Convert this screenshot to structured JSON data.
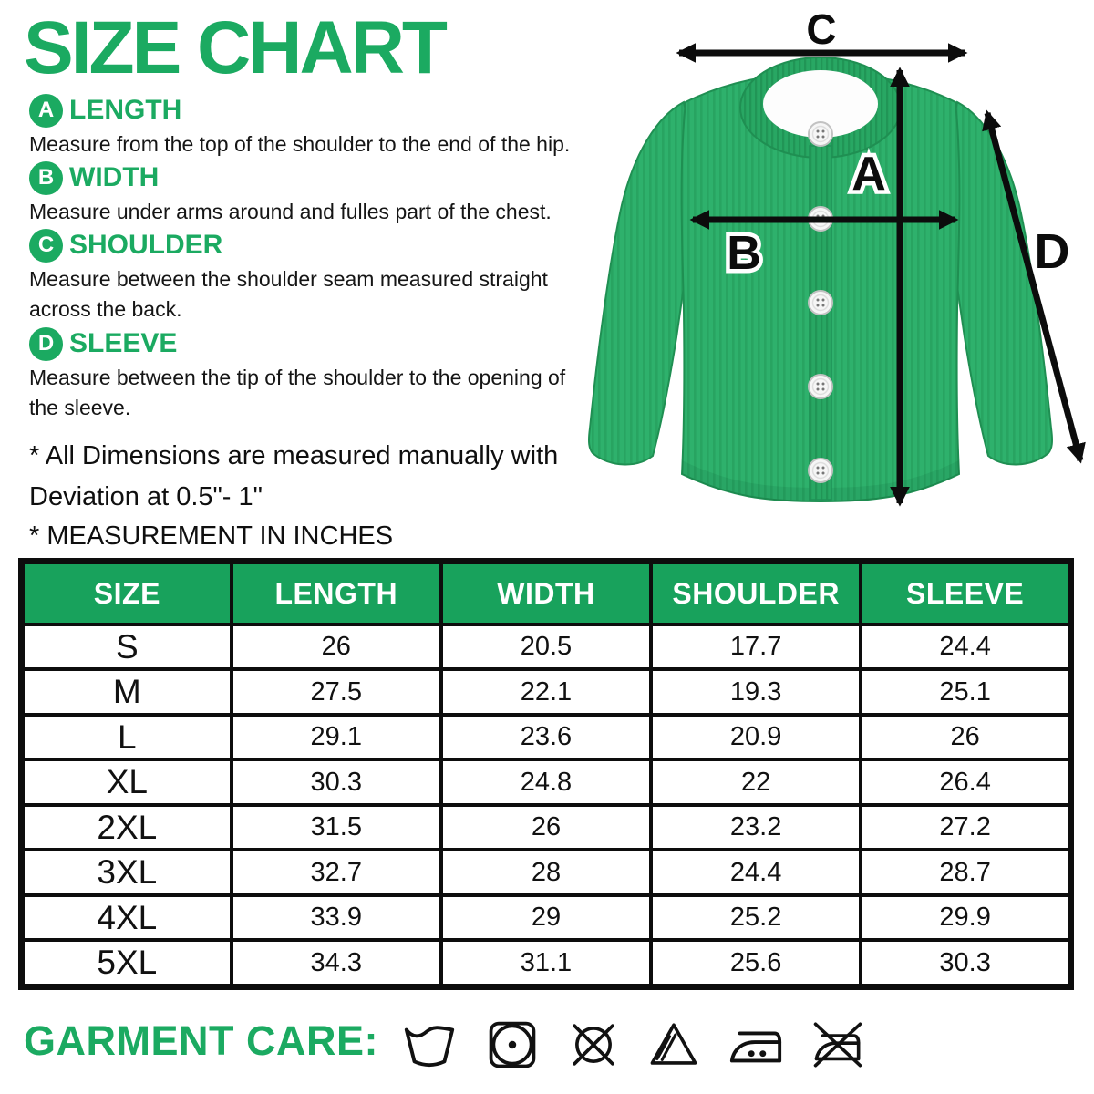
{
  "title": "SIZE CHART",
  "colors": {
    "accent_green": "#1BAA61",
    "table_header_green": "#18A25C",
    "sweater_green": "#2EB16C",
    "border_black": "#0D0D0D"
  },
  "sections": [
    {
      "letter": "A",
      "name": "LENGTH",
      "description": "Measure from the top of the shoulder to the end of the hip."
    },
    {
      "letter": "B",
      "name": "WIDTH",
      "description": "Measure under arms around and fulles part of the chest."
    },
    {
      "letter": "C",
      "name": "SHOULDER",
      "description": "Measure between the shoulder seam measured straight across the back."
    },
    {
      "letter": "D",
      "name": "SLEEVE",
      "description": "Measure between the tip of the shoulder to the opening of the sleeve."
    }
  ],
  "notes": {
    "dimension_note": "* All Dimensions are measured manually with Deviation at 0.5\"- 1\"",
    "unit_note": "* MEASUREMENT IN INCHES"
  },
  "diagram": {
    "labels": {
      "length": "A",
      "width": "B",
      "shoulder": "C",
      "sleeve": "D"
    }
  },
  "table": {
    "headers": [
      "SIZE",
      "LENGTH",
      "WIDTH",
      "SHOULDER",
      "SLEEVE"
    ],
    "rows": [
      [
        "S",
        "26",
        "20.5",
        "17.7",
        "24.4"
      ],
      [
        "M",
        "27.5",
        "22.1",
        "19.3",
        "25.1"
      ],
      [
        "L",
        "29.1",
        "23.6",
        "20.9",
        "26"
      ],
      [
        "XL",
        "30.3",
        "24.8",
        "22",
        "26.4"
      ],
      [
        "2XL",
        "31.5",
        "26",
        "23.2",
        "27.2"
      ],
      [
        "3XL",
        "32.7",
        "28",
        "24.4",
        "28.7"
      ],
      [
        "4XL",
        "33.9",
        "29",
        "25.2",
        "29.9"
      ],
      [
        "5XL",
        "34.3",
        "31.1",
        "25.6",
        "30.3"
      ]
    ]
  },
  "garment_care": {
    "label": "GARMENT CARE:",
    "icons": [
      "machine-wash",
      "tumble-dry",
      "do-not-dry-clean",
      "non-chlorine-bleach",
      "iron-medium-heat",
      "do-not-iron"
    ]
  }
}
